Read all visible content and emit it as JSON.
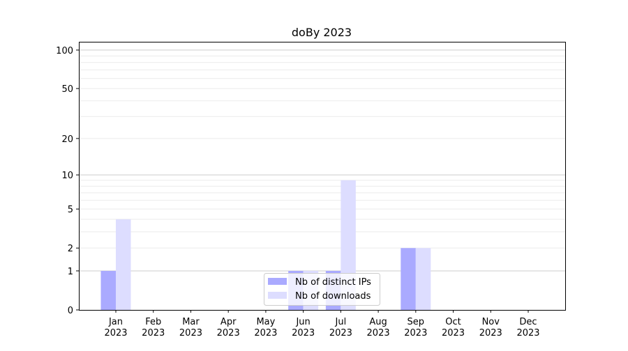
{
  "chart_data": {
    "type": "bar",
    "title": "doBy 2023",
    "xlabel": "",
    "ylabel": "",
    "yscale": "log(1+y)",
    "ylim": [
      0,
      116
    ],
    "grid": true,
    "legend_position": "lower-center",
    "categories": [
      "Jan\n2023",
      "Feb\n2023",
      "Mar\n2023",
      "Apr\n2023",
      "May\n2023",
      "Jun\n2023",
      "Jul\n2023",
      "Aug\n2023",
      "Sep\n2023",
      "Oct\n2023",
      "Nov\n2023",
      "Dec\n2023"
    ],
    "yticks": [
      0,
      1,
      2,
      5,
      10,
      20,
      50,
      100
    ],
    "series": [
      {
        "name": "Nb of distinct IPs",
        "color": "#aaaaff",
        "values": [
          1,
          0,
          0,
          0,
          0,
          1,
          1,
          0,
          2,
          0,
          0,
          0
        ]
      },
      {
        "name": "Nb of downloads",
        "color": "#ddddff",
        "values": [
          4,
          0,
          0,
          0,
          0,
          1,
          9,
          0,
          2,
          0,
          0,
          0
        ]
      }
    ]
  }
}
